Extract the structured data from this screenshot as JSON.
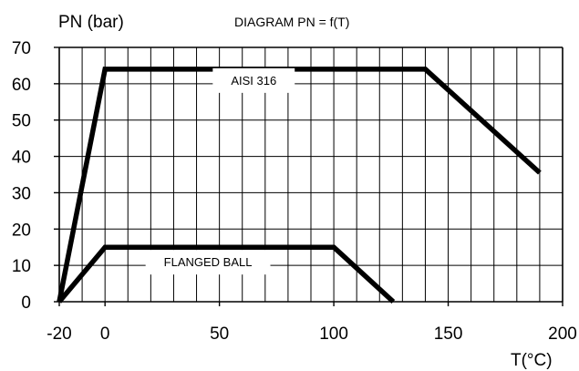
{
  "chart_data": {
    "type": "line",
    "title": "DIAGRAM PN = f(T)",
    "xlabel": "T(°C)",
    "ylabel": "PN (bar)",
    "xlim": [
      -20,
      200
    ],
    "ylim": [
      0,
      70
    ],
    "x_ticks": [
      -20,
      0,
      50,
      100,
      150,
      200
    ],
    "y_ticks": [
      0,
      10,
      20,
      30,
      40,
      50,
      60,
      70
    ],
    "grid": true,
    "series": [
      {
        "name": "AISI 316",
        "points": [
          [
            -20,
            0
          ],
          [
            0,
            64
          ],
          [
            140,
            64
          ],
          [
            190,
            35.5
          ]
        ],
        "label_at": [
          65,
          61
        ]
      },
      {
        "name": "FLANGED BALL",
        "points": [
          [
            -20,
            0
          ],
          [
            0,
            15
          ],
          [
            100,
            15
          ],
          [
            126,
            0
          ]
        ],
        "label_at": [
          45,
          11
        ]
      }
    ]
  }
}
